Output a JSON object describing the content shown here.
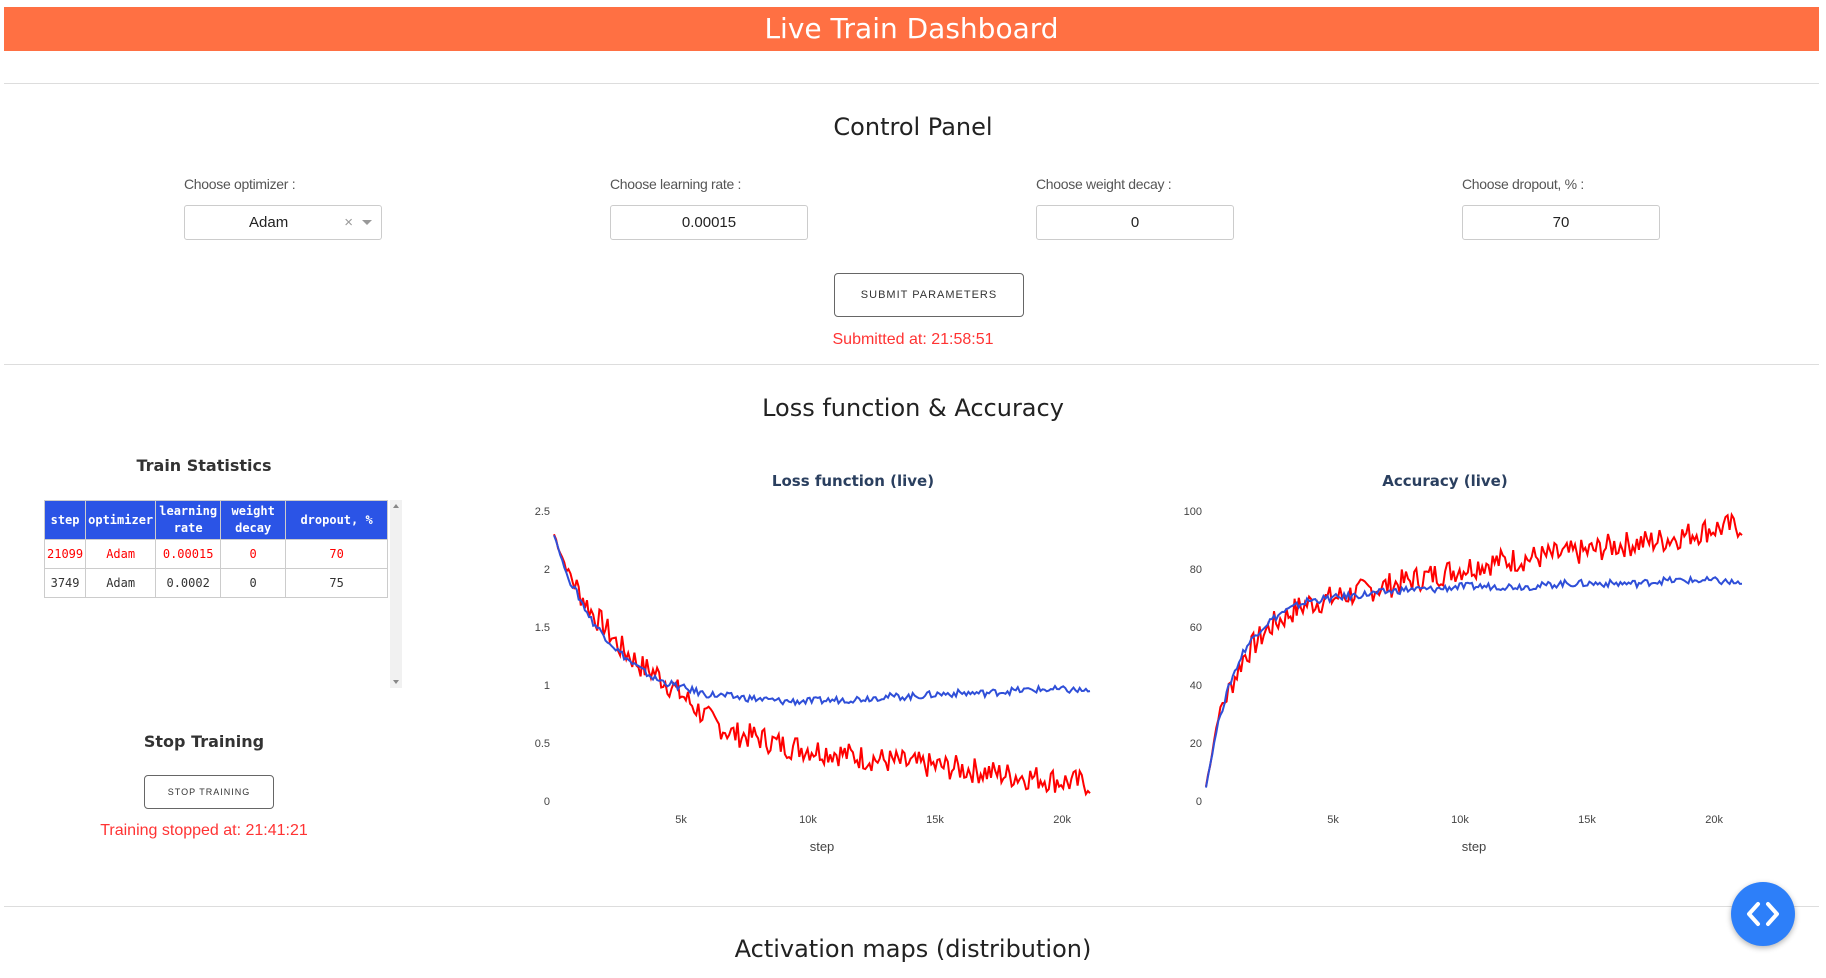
{
  "header": {
    "title": "Live Train Dashboard"
  },
  "control_panel": {
    "title": "Control Panel",
    "optimizer": {
      "label": "Choose optimizer :",
      "value": "Adam"
    },
    "learning_rate": {
      "label": "Choose learning rate :",
      "value": "0.00015"
    },
    "weight_decay": {
      "label": "Choose weight decay :",
      "value": "0"
    },
    "dropout": {
      "label": "Choose dropout, % :",
      "value": "70"
    },
    "submit_label": "SUBMIT PARAMETERS",
    "submitted_text": "Submitted at: 21:58:51"
  },
  "loss_section": {
    "title": "Loss function & Accuracy"
  },
  "train_stats": {
    "title": "Train Statistics",
    "columns": [
      "step",
      "optimizer",
      "learning rate",
      "weight decay",
      "dropout, %"
    ],
    "rows": [
      [
        "21099",
        "Adam",
        "0.00015",
        "0",
        "70"
      ],
      [
        "3749",
        "Adam",
        "0.0002",
        "0",
        "75"
      ]
    ]
  },
  "stop": {
    "title": "Stop Training",
    "button_label": "STOP TRAINING",
    "stopped_text": "Training stopped at: 21:41:21"
  },
  "activation": {
    "title": "Activation maps (distribution)"
  },
  "colors": {
    "accent": "#ff7043",
    "red_series": "#ff0000",
    "blue_series": "#2f4fd8",
    "table_header": "#2b54e6",
    "fab": "#2d7ff9"
  },
  "chart_data": [
    {
      "type": "line",
      "title": "Loss function (live)",
      "xlabel": "step",
      "ylabel": "",
      "xlim": [
        0,
        21099
      ],
      "ylim": [
        0,
        2.5
      ],
      "xticks": [
        "5k",
        "10k",
        "15k",
        "20k"
      ],
      "yticks": [
        "0",
        "0.5",
        "1",
        "1.5",
        "2",
        "2.5"
      ],
      "x": [
        0,
        500,
        1000,
        1500,
        2000,
        2500,
        3000,
        3500,
        4000,
        5000,
        6000,
        7000,
        8000,
        9000,
        10000,
        11000,
        12000,
        13000,
        14000,
        15000,
        16000,
        17000,
        18000,
        19000,
        20000,
        21099
      ],
      "series": [
        {
          "values": [
            2.3,
            2.0,
            1.8,
            1.62,
            1.5,
            1.35,
            1.25,
            1.15,
            1.1,
            0.92,
            0.72,
            0.58,
            0.55,
            0.48,
            0.45,
            0.42,
            0.38,
            0.35,
            0.32,
            0.3,
            0.28,
            0.25,
            0.22,
            0.2,
            0.17,
            0.15
          ]
        },
        {
          "values": [
            2.3,
            1.95,
            1.75,
            1.55,
            1.42,
            1.3,
            1.2,
            1.12,
            1.05,
            0.98,
            0.92,
            0.9,
            0.88,
            0.86,
            0.86,
            0.87,
            0.88,
            0.9,
            0.9,
            0.92,
            0.93,
            0.93,
            0.95,
            0.96,
            0.96,
            0.95
          ]
        }
      ]
    },
    {
      "type": "line",
      "title": "Accuracy (live)",
      "xlabel": "step",
      "ylabel": "",
      "xlim": [
        0,
        21099
      ],
      "ylim": [
        0,
        100
      ],
      "xticks": [
        "5k",
        "10k",
        "15k",
        "20k"
      ],
      "yticks": [
        "0",
        "20",
        "40",
        "60",
        "80",
        "100"
      ],
      "x": [
        0,
        500,
        1000,
        1500,
        2000,
        2500,
        3000,
        3500,
        4000,
        5000,
        6000,
        7000,
        8000,
        9000,
        10000,
        11000,
        12000,
        13000,
        14000,
        15000,
        16000,
        17000,
        18000,
        19000,
        20000,
        21099
      ],
      "series": [
        {
          "values": [
            5,
            30,
            40,
            50,
            55,
            60,
            63,
            66,
            68,
            70,
            72,
            74,
            76,
            78,
            80,
            82,
            83,
            84,
            85,
            86,
            88,
            89,
            90,
            92,
            94,
            95
          ]
        },
        {
          "values": [
            5,
            28,
            42,
            52,
            58,
            62,
            65,
            67,
            69,
            70,
            71,
            72,
            73,
            73,
            74,
            74,
            74,
            74,
            75,
            75,
            75,
            75,
            76,
            76,
            76,
            75
          ]
        }
      ]
    }
  ]
}
